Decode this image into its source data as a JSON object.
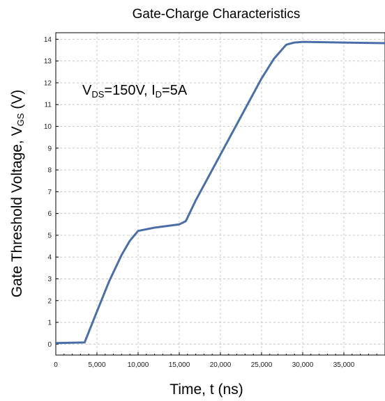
{
  "chart_data": {
    "type": "line",
    "title": "Gate-Charge Characteristics",
    "xlabel": "Time, t (ns)",
    "ylabel": {
      "main": "Gate Threshold Voltage, V",
      "sub": "GS",
      "unit": " (V)"
    },
    "annotation": {
      "v": "V",
      "ds_sub": "DS",
      "v_value": "=150V, I",
      "d_sub": "D",
      "i_value": "=5A"
    },
    "xlim": [
      0,
      40000
    ],
    "ylim": [
      -0.5,
      14.3
    ],
    "x_ticks": [
      0,
      5000,
      10000,
      15000,
      20000,
      25000,
      30000,
      35000
    ],
    "x_tick_labels": [
      "0",
      "5,000",
      "10,000",
      "15,000",
      "20,000",
      "25,000",
      "30,000",
      "35,000"
    ],
    "y_ticks": [
      0,
      1,
      2,
      3,
      4,
      5,
      6,
      7,
      8,
      9,
      10,
      11,
      12,
      13,
      14
    ],
    "y_tick_labels": [
      "0",
      "1",
      "2",
      "3",
      "4",
      "5",
      "6",
      "7",
      "8",
      "9",
      "10",
      "11",
      "12",
      "13",
      "14"
    ],
    "grid": true,
    "line_color": "#4a6ea8",
    "series": [
      {
        "x": [
          0,
          3500,
          5000,
          6500,
          8000,
          9000,
          10000,
          12000,
          14000,
          15000,
          15800,
          17000,
          20000,
          23000,
          25000,
          26500,
          28000,
          29000,
          30000,
          35000,
          40000
        ],
        "y": [
          0.05,
          0.08,
          1.5,
          2.9,
          4.1,
          4.75,
          5.2,
          5.35,
          5.45,
          5.5,
          5.65,
          6.6,
          8.7,
          10.8,
          12.2,
          13.1,
          13.75,
          13.85,
          13.88,
          13.85,
          13.82
        ]
      }
    ]
  }
}
